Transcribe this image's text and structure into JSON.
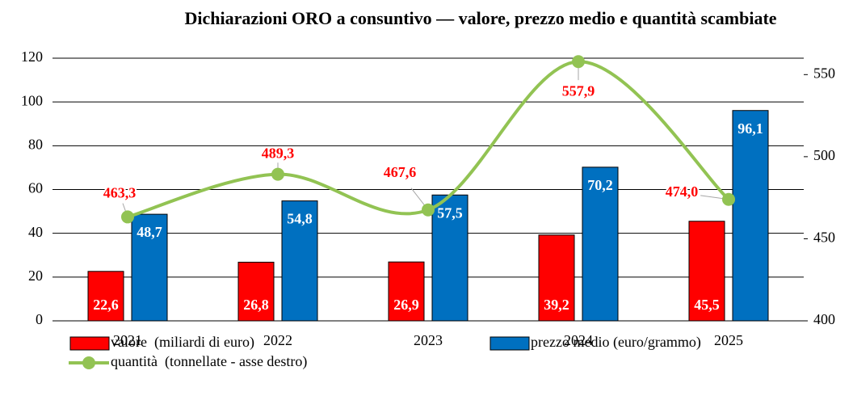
{
  "chart_data": {
    "type": "bar",
    "title": "Dichiarazioni ORO a consuntivo — valore, prezzo medio e quantità scambiate",
    "categories": [
      "2021",
      "2022",
      "2023",
      "2024",
      "2025"
    ],
    "series": [
      {
        "name": "valore  (miliardi di euro)",
        "color": "#ff0000",
        "type": "bar",
        "values": [
          22.6,
          26.8,
          26.9,
          39.2,
          45.5
        ],
        "value_labels": [
          "22,6",
          "26,8",
          "26,9",
          "39,2",
          "45,5"
        ]
      },
      {
        "name": "prezzo medio (euro/grammo)",
        "color": "#0070c0",
        "type": "bar",
        "values": [
          48.7,
          54.8,
          57.5,
          70.2,
          96.1
        ],
        "value_labels": [
          "48,7",
          "54,8",
          "57,5",
          "70,2",
          "96,1"
        ]
      },
      {
        "name": "quantità  (tonnellate - asse destro)",
        "color": "#92c353",
        "type": "line",
        "axis": "y2",
        "values": [
          463.3,
          489.3,
          467.6,
          557.9,
          474.0
        ],
        "value_labels": [
          "463,3",
          "489,3",
          "467,6",
          "557,9",
          "474,0"
        ]
      }
    ],
    "ylim": [
      0,
      120
    ],
    "yticks": [
      0,
      20,
      40,
      60,
      80,
      100,
      120
    ],
    "y2lim": [
      400,
      560
    ],
    "y2ticks": [
      400,
      450,
      500,
      550
    ],
    "grid": true
  }
}
